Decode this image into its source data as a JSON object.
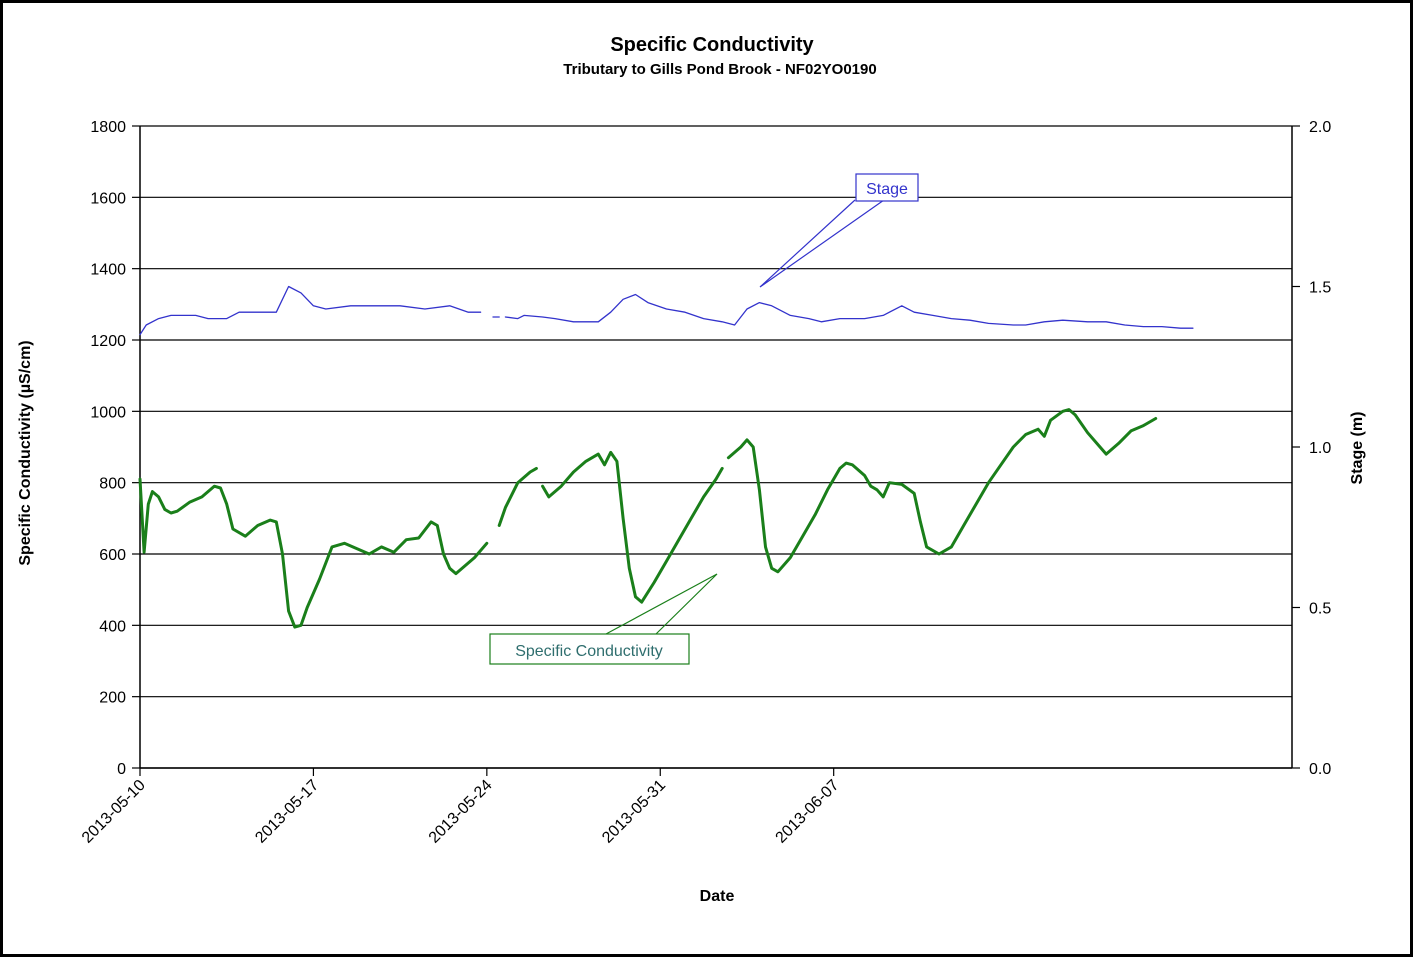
{
  "chart_data": {
    "type": "line",
    "title": "Specific Conductivity",
    "subtitle": "Tributary to Gills Pond Brook - NF02YO0190",
    "xlabel": "Date",
    "ylabel_left": "Specific Conductivity  (µS/cm)",
    "ylabel_right": "Stage (m)",
    "x_ticks": [
      "2013-05-10",
      "2013-05-17",
      "2013-05-24",
      "2013-05-31",
      "2013-06-07"
    ],
    "x_range": [
      "2013-05-10",
      "2013-06-14"
    ],
    "y_left": {
      "range": [
        0,
        1800
      ],
      "ticks": [
        0,
        200,
        400,
        600,
        800,
        1000,
        1200,
        1400,
        1600,
        1800
      ]
    },
    "y_right": {
      "range": [
        0.0,
        2.0
      ],
      "ticks": [
        "0.0",
        "0.5",
        "1.0",
        "1.5",
        "2.0"
      ]
    },
    "grid": "horizontal",
    "legend": "callouts",
    "series": [
      {
        "name": "Specific Conductivity",
        "axis": "left",
        "color": "#1a7f1a",
        "points": [
          [
            "2013-05-10 00:00",
            810
          ],
          [
            "2013-05-10 04:00",
            605
          ],
          [
            "2013-05-10 08:00",
            740
          ],
          [
            "2013-05-10 12:00",
            775
          ],
          [
            "2013-05-10 18:00",
            760
          ],
          [
            "2013-05-11 00:00",
            725
          ],
          [
            "2013-05-11 06:00",
            715
          ],
          [
            "2013-05-11 12:00",
            720
          ],
          [
            "2013-05-12 00:00",
            745
          ],
          [
            "2013-05-12 12:00",
            760
          ],
          [
            "2013-05-13 00:00",
            790
          ],
          [
            "2013-05-13 06:00",
            785
          ],
          [
            "2013-05-13 12:00",
            740
          ],
          [
            "2013-05-13 18:00",
            670
          ],
          [
            "2013-05-14 06:00",
            650
          ],
          [
            "2013-05-14 18:00",
            680
          ],
          [
            "2013-05-15 06:00",
            695
          ],
          [
            "2013-05-15 12:00",
            690
          ],
          [
            "2013-05-15 18:00",
            600
          ],
          [
            "2013-05-16 00:00",
            440
          ],
          [
            "2013-05-16 06:00",
            395
          ],
          [
            "2013-05-16 12:00",
            400
          ],
          [
            "2013-05-16 18:00",
            450
          ],
          [
            "2013-05-17 06:00",
            530
          ],
          [
            "2013-05-17 18:00",
            620
          ],
          [
            "2013-05-18 06:00",
            630
          ],
          [
            "2013-05-18 18:00",
            615
          ],
          [
            "2013-05-19 06:00",
            600
          ],
          [
            "2013-05-19 18:00",
            620
          ],
          [
            "2013-05-20 06:00",
            605
          ],
          [
            "2013-05-20 18:00",
            640
          ],
          [
            "2013-05-21 06:00",
            645
          ],
          [
            "2013-05-21 18:00",
            690
          ],
          [
            "2013-05-22 00:00",
            680
          ],
          [
            "2013-05-22 06:00",
            600
          ],
          [
            "2013-05-22 12:00",
            560
          ],
          [
            "2013-05-22 18:00",
            545
          ],
          [
            "2013-05-23 12:00",
            590
          ],
          [
            "2013-05-24 00:00",
            630
          ],
          null,
          [
            "2013-05-24 12:00",
            680
          ],
          [
            "2013-05-24 18:00",
            730
          ],
          [
            "2013-05-25 06:00",
            800
          ],
          [
            "2013-05-25 18:00",
            830
          ],
          [
            "2013-05-26 00:00",
            840
          ],
          null,
          [
            "2013-05-26 06:00",
            790
          ],
          [
            "2013-05-26 12:00",
            760
          ],
          [
            "2013-05-27 00:00",
            790
          ],
          [
            "2013-05-27 12:00",
            830
          ],
          [
            "2013-05-28 00:00",
            860
          ],
          [
            "2013-05-28 12:00",
            880
          ],
          [
            "2013-05-28 18:00",
            850
          ],
          [
            "2013-05-29 00:00",
            885
          ],
          [
            "2013-05-29 06:00",
            860
          ],
          [
            "2013-05-29 12:00",
            700
          ],
          [
            "2013-05-29 18:00",
            560
          ],
          [
            "2013-05-30 00:00",
            480
          ],
          [
            "2013-05-30 06:00",
            465
          ],
          [
            "2013-05-30 18:00",
            520
          ],
          [
            "2013-05-31 06:00",
            580
          ],
          [
            "2013-05-31 18:00",
            640
          ],
          [
            "2013-06-01 06:00",
            700
          ],
          [
            "2013-06-01 18:00",
            760
          ],
          [
            "2013-06-02 06:00",
            810
          ],
          [
            "2013-06-02 12:00",
            840
          ],
          null,
          [
            "2013-06-02 18:00",
            870
          ],
          [
            "2013-06-03 06:00",
            900
          ],
          [
            "2013-06-03 12:00",
            920
          ],
          [
            "2013-06-03 18:00",
            900
          ],
          [
            "2013-06-04 00:00",
            780
          ],
          [
            "2013-06-04 06:00",
            620
          ],
          [
            "2013-06-04 12:00",
            560
          ],
          [
            "2013-06-04 18:00",
            550
          ],
          [
            "2013-06-05 06:00",
            590
          ],
          [
            "2013-06-05 18:00",
            650
          ],
          [
            "2013-06-06 06:00",
            710
          ],
          [
            "2013-06-06 18:00",
            780
          ],
          [
            "2013-06-07 06:00",
            840
          ],
          [
            "2013-06-07 12:00",
            855
          ],
          [
            "2013-06-07 18:00",
            850
          ],
          [
            "2013-06-08 06:00",
            820
          ],
          [
            "2013-06-08 12:00",
            790
          ],
          [
            "2013-06-08 18:00",
            780
          ],
          [
            "2013-06-09 00:00",
            760
          ],
          [
            "2013-06-09 06:00",
            800
          ],
          [
            "2013-06-09 18:00",
            795
          ],
          [
            "2013-06-10 06:00",
            770
          ],
          [
            "2013-06-10 12:00",
            690
          ],
          [
            "2013-06-10 18:00",
            620
          ],
          [
            "2013-06-11 06:00",
            600
          ],
          [
            "2013-06-11 18:00",
            620
          ],
          [
            "2013-06-12 06:00",
            680
          ],
          [
            "2013-06-12 18:00",
            740
          ],
          [
            "2013-06-13 06:00",
            800
          ],
          [
            "2013-06-13 18:00",
            850
          ],
          [
            "2013-06-14 06:00",
            900
          ],
          [
            "2013-06-14 18:00",
            935
          ],
          [
            "2013-06-15 06:00",
            950
          ],
          [
            "2013-06-15 12:00",
            930
          ],
          [
            "2013-06-15 18:00",
            975
          ],
          [
            "2013-06-16 06:00",
            1000
          ],
          [
            "2013-06-16 12:00",
            1005
          ],
          [
            "2013-06-16 18:00",
            990
          ],
          [
            "2013-06-17 06:00",
            940
          ],
          [
            "2013-06-17 18:00",
            900
          ],
          [
            "2013-06-18 00:00",
            880
          ],
          [
            "2013-06-18 12:00",
            910
          ],
          [
            "2013-06-19 00:00",
            945
          ],
          [
            "2013-06-19 12:00",
            960
          ],
          [
            "2013-06-20 00:00",
            980
          ]
        ]
      },
      {
        "name": "Stage",
        "axis": "right",
        "color": "#3333cc",
        "points": [
          [
            "2013-05-10 00:00",
            1.35
          ],
          [
            "2013-05-10 06:00",
            1.38
          ],
          [
            "2013-05-10 18:00",
            1.4
          ],
          [
            "2013-05-11 06:00",
            1.41
          ],
          [
            "2013-05-12 06:00",
            1.41
          ],
          [
            "2013-05-12 18:00",
            1.4
          ],
          [
            "2013-05-13 12:00",
            1.4
          ],
          [
            "2013-05-14 00:00",
            1.42
          ],
          [
            "2013-05-14 12:00",
            1.42
          ],
          [
            "2013-05-15 00:00",
            1.42
          ],
          [
            "2013-05-15 12:00",
            1.42
          ],
          [
            "2013-05-16 00:00",
            1.5
          ],
          [
            "2013-05-16 12:00",
            1.48
          ],
          [
            "2013-05-17 00:00",
            1.44
          ],
          [
            "2013-05-17 12:00",
            1.43
          ],
          [
            "2013-05-18 12:00",
            1.44
          ],
          [
            "2013-05-19 12:00",
            1.44
          ],
          [
            "2013-05-20 12:00",
            1.44
          ],
          [
            "2013-05-21 12:00",
            1.43
          ],
          [
            "2013-05-22 12:00",
            1.44
          ],
          [
            "2013-05-23 06:00",
            1.42
          ],
          [
            "2013-05-23 18:00",
            1.42
          ],
          null,
          [
            "2013-05-24 06:00",
            1.405
          ],
          [
            "2013-05-24 12:00",
            1.405
          ],
          null,
          [
            "2013-05-24 18:00",
            1.405
          ],
          [
            "2013-05-25 06:00",
            1.4
          ],
          [
            "2013-05-25 12:00",
            1.41
          ],
          [
            "2013-05-26 06:00",
            1.405
          ],
          [
            "2013-05-26 18:00",
            1.4
          ],
          [
            "2013-05-27 12:00",
            1.39
          ],
          [
            "2013-05-28 12:00",
            1.39
          ],
          [
            "2013-05-29 00:00",
            1.42
          ],
          [
            "2013-05-29 12:00",
            1.46
          ],
          [
            "2013-05-30 00:00",
            1.475
          ],
          [
            "2013-05-30 12:00",
            1.45
          ],
          [
            "2013-05-31 06:00",
            1.43
          ],
          [
            "2013-06-01 00:00",
            1.42
          ],
          [
            "2013-06-01 18:00",
            1.4
          ],
          [
            "2013-06-02 12:00",
            1.39
          ],
          [
            "2013-06-03 00:00",
            1.38
          ],
          [
            "2013-06-03 12:00",
            1.43
          ],
          [
            "2013-06-04 00:00",
            1.45
          ],
          [
            "2013-06-04 12:00",
            1.44
          ],
          [
            "2013-06-05 06:00",
            1.41
          ],
          [
            "2013-06-06 00:00",
            1.4
          ],
          [
            "2013-06-06 12:00",
            1.39
          ],
          [
            "2013-06-07 06:00",
            1.4
          ],
          [
            "2013-06-08 06:00",
            1.4
          ],
          [
            "2013-06-09 00:00",
            1.41
          ],
          [
            "2013-06-09 18:00",
            1.44
          ],
          [
            "2013-06-10 06:00",
            1.42
          ],
          [
            "2013-06-11 00:00",
            1.41
          ],
          [
            "2013-06-11 18:00",
            1.4
          ],
          [
            "2013-06-12 12:00",
            1.395
          ],
          [
            "2013-06-13 06:00",
            1.385
          ],
          [
            "2013-06-14 06:00",
            1.38
          ],
          [
            "2013-06-14 18:00",
            1.38
          ],
          [
            "2013-06-15 12:00",
            1.39
          ],
          [
            "2013-06-16 06:00",
            1.395
          ],
          [
            "2013-06-17 06:00",
            1.39
          ],
          [
            "2013-06-18 00:00",
            1.39
          ],
          [
            "2013-06-18 18:00",
            1.38
          ],
          [
            "2013-06-19 12:00",
            1.375
          ],
          [
            "2013-06-20 06:00",
            1.375
          ],
          [
            "2013-06-21 00:00",
            1.37
          ],
          [
            "2013-06-21 12:00",
            1.37
          ]
        ]
      }
    ],
    "callouts": [
      {
        "text": "Stage",
        "series": "Stage",
        "color": "#3333cc"
      },
      {
        "text": "Specific Conductivity",
        "series": "Specific Conductivity",
        "color": "#1a7f1a"
      }
    ]
  }
}
